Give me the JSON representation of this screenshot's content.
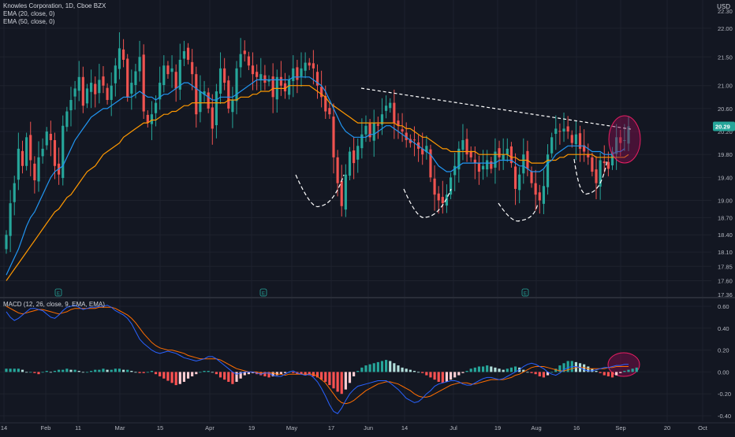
{
  "header": {
    "symbol_line": "Knowles Corporation, 1D, Cboe BZX",
    "ema20_label": "EMA (20, close, 0)",
    "ema50_label": "EMA (50, close, 0)",
    "macd_label": "MACD (12, 26, close, 9, EMA, EMA)",
    "currency": "USD"
  },
  "colors": {
    "background": "#131722",
    "up": "#26a69a",
    "down": "#ef5350",
    "ema20": "#2196f3",
    "ema50": "#ff9800",
    "macd_line": "#2962ff",
    "signal_line": "#ff6d00",
    "hist_up_strong": "#26a69a",
    "hist_up_weak": "#b2dfdb",
    "hist_down_strong": "#ff5252",
    "hist_down_weak": "#ffcdd2",
    "annotation": "#ffffff",
    "highlight": "#880e4f",
    "last_price_bg": "#26a69a"
  },
  "chart_data": [
    {
      "type": "candlestick",
      "price_axis_ticks": [
        "22.30",
        "22.00",
        "21.50",
        "21.00",
        "20.60",
        "20.20",
        "19.80",
        "19.40",
        "19.00",
        "18.70",
        "18.40",
        "18.10",
        "17.85",
        "17.60",
        "17.36"
      ],
      "time_axis_ticks": [
        "14",
        "Feb",
        "11",
        "Mar",
        "15",
        "Apr",
        "19",
        "May",
        "17",
        "Jun",
        "14",
        "Jul",
        "19",
        "Aug",
        "16",
        "Sep",
        "20",
        "Oct"
      ],
      "ylim": [
        17.36,
        22.3
      ],
      "last_price": "20.29",
      "earnings_markers": [
        "E",
        "E",
        "E"
      ],
      "legend": [
        "EMA (20, close, 0)",
        "EMA (50, close, 0)"
      ],
      "pattern_annotations": [
        "descending resistance trendline",
        "cup bottom",
        "cup bottom",
        "cup bottom",
        "cup bottom",
        "breakout highlight circle"
      ],
      "closes": [
        18.4,
        18.95,
        19.3,
        19.9,
        19.6,
        20.1,
        19.7,
        19.35,
        19.75,
        19.9,
        20.2,
        20.05,
        19.6,
        19.45,
        20.3,
        20.55,
        20.75,
        20.95,
        21.15,
        20.65,
        20.95,
        21.05,
        20.85,
        21.1,
        21.0,
        20.75,
        21.0,
        21.35,
        21.65,
        21.45,
        20.8,
        21.05,
        21.25,
        21.5,
        20.55,
        20.35,
        20.5,
        20.7,
        21.05,
        21.35,
        21.2,
        21.3,
        20.95,
        21.45,
        21.6,
        21.45,
        21.2,
        20.5,
        20.9,
        20.9,
        20.6,
        20.25,
        20.9,
        21.3,
        21.05,
        20.6,
        20.75,
        21.3,
        21.55,
        21.55,
        21.35,
        21.2,
        21.15,
        21.2,
        21.05,
        21.1,
        20.8,
        21.15,
        21.0,
        20.9,
        21.1,
        21.3,
        21.1,
        21.3,
        21.4,
        21.35,
        21.3,
        21.0,
        20.8,
        20.55,
        20.5,
        19.75,
        19.3,
        18.9,
        19.45,
        19.85,
        19.65,
        19.95,
        20.15,
        20.3,
        20.1,
        20.35,
        20.3,
        20.5,
        20.65,
        20.7,
        20.35,
        20.3,
        20.2,
        20.05,
        20.0,
        20.05,
        19.9,
        19.8,
        19.95,
        19.4,
        19.1,
        19.0,
        18.95,
        19.1,
        19.4,
        19.6,
        19.9,
        20.05,
        19.8,
        19.75,
        19.65,
        19.5,
        19.6,
        19.7,
        19.55,
        19.85,
        19.75,
        19.8,
        19.9,
        19.65,
        19.2,
        19.45,
        19.8,
        19.55,
        19.3,
        19.1,
        19.0,
        19.25,
        19.8,
        20.1,
        20.25,
        20.2,
        20.25,
        20.2,
        20.0,
        20.15,
        19.9,
        19.85,
        19.75,
        19.5,
        19.3,
        19.7,
        19.65,
        19.55,
        19.85,
        20.1,
        20.0,
        20.05,
        20.29
      ],
      "ema20": [
        17.7,
        17.85,
        18.0,
        18.15,
        18.35,
        18.55,
        18.7,
        18.8,
        18.95,
        19.1,
        19.25,
        19.4,
        19.5,
        19.55,
        19.6,
        19.75,
        19.9,
        20.05,
        20.15,
        20.25,
        20.35,
        20.45,
        20.5,
        20.55,
        20.6,
        20.6,
        20.65,
        20.7,
        20.75,
        20.8,
        20.8,
        20.8,
        20.85,
        20.9,
        20.85,
        20.8,
        20.8,
        20.75,
        20.8,
        20.85,
        20.85,
        20.9,
        20.95,
        21.0,
        21.05,
        21.05,
        21.0,
        20.95,
        20.9,
        20.85,
        20.8,
        20.75,
        20.75,
        20.8,
        20.8,
        20.8,
        20.8,
        20.85,
        20.9,
        20.95,
        21.0,
        21.05,
        21.1,
        21.1,
        21.1,
        21.1,
        21.1,
        21.1,
        21.1,
        21.1,
        21.1,
        21.15,
        21.15,
        21.15,
        21.15,
        21.15,
        21.1,
        21.05,
        21.0,
        20.9,
        20.75,
        20.6,
        20.45,
        20.3,
        20.2,
        20.15,
        20.1,
        20.1,
        20.1,
        20.1,
        20.15,
        20.15,
        20.2,
        20.25,
        20.3,
        20.3,
        20.25,
        20.2,
        20.15,
        20.1,
        20.05,
        20.0,
        19.95,
        19.9,
        19.85,
        19.8,
        19.7,
        19.6,
        19.55,
        19.5,
        19.5,
        19.55,
        19.6,
        19.65,
        19.65,
        19.65,
        19.65,
        19.65,
        19.65,
        19.65,
        19.65,
        19.65,
        19.7,
        19.7,
        19.7,
        19.7,
        19.65,
        19.6,
        19.6,
        19.55,
        19.5,
        19.5,
        19.5,
        19.55,
        19.65,
        19.7,
        19.8,
        19.85,
        19.9,
        19.95,
        19.95,
        19.95,
        19.95,
        19.95,
        19.9,
        19.85,
        19.85,
        19.85,
        19.8,
        19.8,
        19.8,
        19.85,
        19.85,
        19.9
      ],
      "ema50": [
        17.6,
        17.7,
        17.8,
        17.9,
        18.0,
        18.1,
        18.2,
        18.3,
        18.4,
        18.5,
        18.6,
        18.7,
        18.8,
        18.85,
        18.95,
        19.05,
        19.1,
        19.2,
        19.3,
        19.4,
        19.5,
        19.55,
        19.6,
        19.7,
        19.8,
        19.85,
        19.9,
        19.95,
        20.0,
        20.1,
        20.15,
        20.2,
        20.25,
        20.3,
        20.35,
        20.35,
        20.4,
        20.4,
        20.45,
        20.5,
        20.5,
        20.55,
        20.55,
        20.6,
        20.65,
        20.65,
        20.7,
        20.7,
        20.7,
        20.7,
        20.7,
        20.7,
        20.7,
        20.7,
        20.7,
        20.75,
        20.75,
        20.75,
        20.8,
        20.8,
        20.8,
        20.85,
        20.85,
        20.9,
        20.9,
        20.9,
        20.95,
        20.95,
        20.95,
        20.95,
        21.0,
        21.0,
        21.0,
        21.0,
        21.0,
        21.0,
        20.95,
        20.9,
        20.85,
        20.8,
        20.7,
        20.65,
        20.6,
        20.55,
        20.5,
        20.45,
        20.4,
        20.35,
        20.35,
        20.35,
        20.35,
        20.35,
        20.35,
        20.35,
        20.35,
        20.35,
        20.35,
        20.3,
        20.3,
        20.25,
        20.25,
        20.2,
        20.15,
        20.1,
        20.1,
        20.05,
        20.0,
        19.95,
        19.9,
        19.9,
        19.85,
        19.85,
        19.85,
        19.85,
        19.85,
        19.85,
        19.85,
        19.8,
        19.8,
        19.8,
        19.8,
        19.8,
        19.8,
        19.8,
        19.8,
        19.75,
        19.75,
        19.7,
        19.7,
        19.7,
        19.65,
        19.65,
        19.65,
        19.65,
        19.7,
        19.7,
        19.7,
        19.75,
        19.75,
        19.8,
        19.8,
        19.8,
        19.8,
        19.8,
        19.8,
        19.8,
        19.75,
        19.75,
        19.75,
        19.75,
        19.75,
        19.75,
        19.75,
        19.75,
        19.8
      ]
    },
    {
      "type": "bar",
      "title": "MACD (12, 26, close, 9, EMA, EMA)",
      "axis_ticks": [
        "0.60",
        "0.40",
        "0.20",
        "0.00",
        "-0.20",
        "-0.40"
      ],
      "ylim": [
        -0.45,
        0.65
      ],
      "histogram": [
        0.03,
        0.03,
        0.03,
        0.03,
        0.02,
        0.0,
        0.0,
        -0.01,
        -0.02,
        0.0,
        0.01,
        0.0,
        0.01,
        0.02,
        0.02,
        0.03,
        0.02,
        0.02,
        0.01,
        0.0,
        0.0,
        0.01,
        0.02,
        0.02,
        0.03,
        0.02,
        0.02,
        0.03,
        0.03,
        0.02,
        0.02,
        0.01,
        0.0,
        -0.01,
        -0.01,
        0.0,
        0.01,
        -0.02,
        -0.04,
        -0.06,
        -0.08,
        -0.1,
        -0.12,
        -0.11,
        -0.09,
        -0.06,
        -0.04,
        -0.02,
        0.0,
        0.01,
        0.01,
        0.0,
        -0.02,
        -0.05,
        -0.07,
        -0.09,
        -0.11,
        -0.09,
        -0.06,
        -0.03,
        -0.02,
        -0.01,
        -0.02,
        -0.03,
        -0.04,
        -0.05,
        -0.04,
        -0.03,
        -0.02,
        -0.01,
        0.0,
        -0.01,
        -0.02,
        -0.02,
        -0.03,
        -0.03,
        -0.04,
        -0.05,
        -0.07,
        -0.09,
        -0.12,
        -0.15,
        -0.18,
        -0.2,
        -0.16,
        -0.1,
        -0.04,
        0.01,
        0.04,
        0.06,
        0.07,
        0.08,
        0.09,
        0.1,
        0.11,
        0.1,
        0.08,
        0.06,
        0.04,
        0.03,
        0.02,
        0.01,
        0.0,
        -0.01,
        -0.03,
        -0.05,
        -0.07,
        -0.09,
        -0.1,
        -0.09,
        -0.07,
        -0.05,
        -0.03,
        -0.01,
        0.01,
        0.03,
        0.04,
        0.05,
        0.05,
        0.06,
        0.05,
        0.04,
        0.03,
        0.02,
        0.03,
        0.04,
        0.05,
        0.04,
        0.02,
        0.0,
        -0.01,
        -0.02,
        -0.04,
        -0.05,
        -0.03,
        0.0,
        0.03,
        0.06,
        0.08,
        0.1,
        0.1,
        0.09,
        0.08,
        0.07,
        0.05,
        0.03,
        0.01,
        -0.01,
        -0.03,
        -0.04,
        -0.05,
        -0.03,
        -0.01,
        0.01,
        0.02,
        0.03,
        0.04
      ],
      "macd": [
        0.55,
        0.5,
        0.47,
        0.49,
        0.52,
        0.55,
        0.58,
        0.58,
        0.57,
        0.56,
        0.53,
        0.5,
        0.49,
        0.52,
        0.56,
        0.59,
        0.6,
        0.61,
        0.59,
        0.57,
        0.58,
        0.59,
        0.59,
        0.6,
        0.6,
        0.61,
        0.59,
        0.56,
        0.54,
        0.52,
        0.49,
        0.44,
        0.37,
        0.3,
        0.26,
        0.23,
        0.2,
        0.18,
        0.17,
        0.18,
        0.19,
        0.18,
        0.17,
        0.15,
        0.13,
        0.12,
        0.11,
        0.1,
        0.11,
        0.12,
        0.14,
        0.14,
        0.12,
        0.09,
        0.06,
        0.03,
        0.0,
        -0.02,
        -0.01,
        0.0,
        0.0,
        0.0,
        -0.01,
        -0.02,
        -0.01,
        -0.01,
        -0.03,
        -0.04,
        -0.04,
        -0.02,
        0.0,
        0.01,
        -0.01,
        -0.02,
        -0.03,
        -0.02,
        -0.05,
        -0.09,
        -0.15,
        -0.22,
        -0.3,
        -0.36,
        -0.38,
        -0.33,
        -0.26,
        -0.2,
        -0.16,
        -0.13,
        -0.12,
        -0.11,
        -0.1,
        -0.09,
        -0.08,
        -0.08,
        -0.08,
        -0.1,
        -0.13,
        -0.16,
        -0.2,
        -0.24,
        -0.26,
        -0.28,
        -0.27,
        -0.24,
        -0.2,
        -0.17,
        -0.13,
        -0.11,
        -0.1,
        -0.09,
        -0.08,
        -0.08,
        -0.09,
        -0.11,
        -0.12,
        -0.12,
        -0.1,
        -0.08,
        -0.06,
        -0.05,
        -0.05,
        -0.06,
        -0.07,
        -0.06,
        -0.04,
        -0.02,
        0.0,
        0.02,
        0.05,
        0.07,
        0.08,
        0.07,
        0.05,
        0.03,
        0.0,
        -0.02,
        -0.03,
        -0.01,
        0.02,
        0.04,
        0.05,
        0.05,
        0.04,
        0.02,
        0.01,
        0.01,
        0.02,
        0.03,
        0.04,
        0.04,
        0.05,
        0.06,
        0.06,
        0.07,
        0.07
      ],
      "signal": [
        0.6,
        0.58,
        0.56,
        0.54,
        0.53,
        0.54,
        0.55,
        0.56,
        0.57,
        0.57,
        0.56,
        0.55,
        0.54,
        0.53,
        0.54,
        0.55,
        0.57,
        0.58,
        0.58,
        0.58,
        0.58,
        0.58,
        0.58,
        0.59,
        0.59,
        0.59,
        0.59,
        0.58,
        0.56,
        0.54,
        0.52,
        0.49,
        0.45,
        0.4,
        0.35,
        0.31,
        0.27,
        0.24,
        0.22,
        0.21,
        0.2,
        0.2,
        0.19,
        0.18,
        0.17,
        0.15,
        0.14,
        0.13,
        0.12,
        0.12,
        0.12,
        0.12,
        0.12,
        0.11,
        0.09,
        0.07,
        0.05,
        0.03,
        0.02,
        0.01,
        0.0,
        0.0,
        0.0,
        -0.01,
        -0.01,
        -0.01,
        -0.01,
        -0.02,
        -0.02,
        -0.03,
        -0.02,
        -0.02,
        -0.02,
        -0.02,
        -0.02,
        -0.02,
        -0.02,
        -0.04,
        -0.07,
        -0.1,
        -0.15,
        -0.2,
        -0.25,
        -0.28,
        -0.29,
        -0.28,
        -0.26,
        -0.23,
        -0.2,
        -0.17,
        -0.15,
        -0.13,
        -0.11,
        -0.1,
        -0.09,
        -0.09,
        -0.1,
        -0.11,
        -0.13,
        -0.15,
        -0.17,
        -0.2,
        -0.22,
        -0.23,
        -0.23,
        -0.22,
        -0.2,
        -0.18,
        -0.16,
        -0.14,
        -0.12,
        -0.11,
        -0.1,
        -0.1,
        -0.1,
        -0.11,
        -0.11,
        -0.1,
        -0.09,
        -0.08,
        -0.07,
        -0.07,
        -0.07,
        -0.07,
        -0.06,
        -0.05,
        -0.03,
        -0.02,
        0.0,
        0.02,
        0.04,
        0.05,
        0.05,
        0.05,
        0.04,
        0.03,
        0.02,
        0.01,
        0.01,
        0.02,
        0.03,
        0.04,
        0.04,
        0.04,
        0.03,
        0.03,
        0.03,
        0.03,
        0.03,
        0.04,
        0.04,
        0.05,
        0.05,
        0.05,
        0.05
      ]
    }
  ]
}
